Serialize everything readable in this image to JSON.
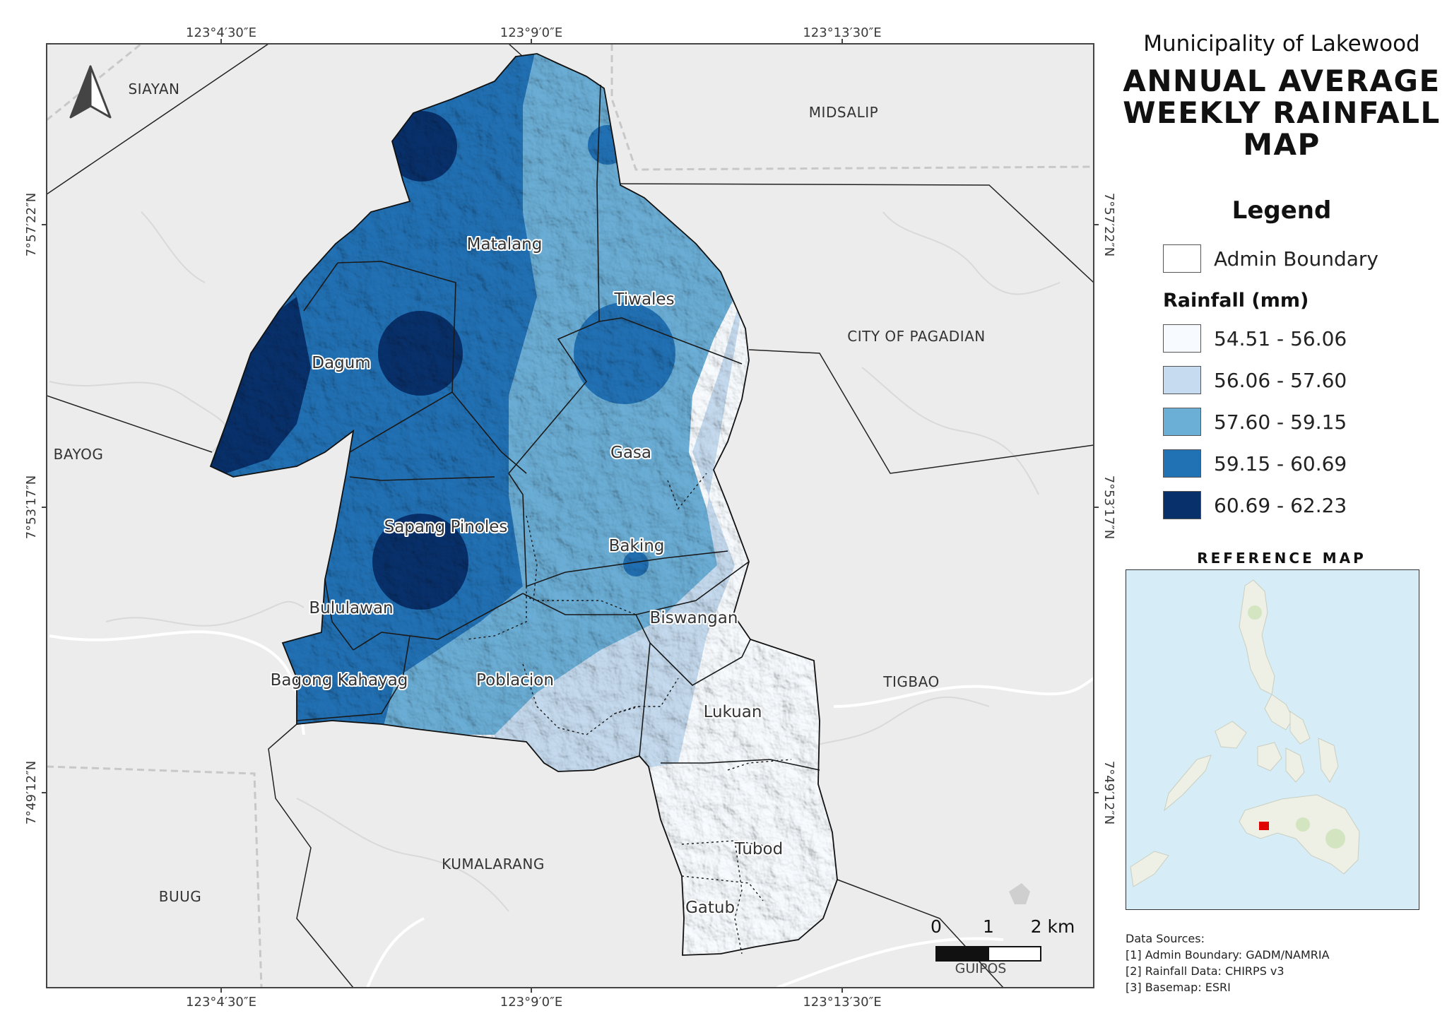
{
  "title": {
    "municipality": "Municipality of Lakewood",
    "line1": "ANNUAL AVERAGE",
    "line2": "WEEKLY RAINFALL",
    "line3": "MAP"
  },
  "grid_labels": {
    "lon": [
      "123°4′30″E",
      "123°9′0″E",
      "123°13′30″E"
    ],
    "lat": [
      "7°57′22″N",
      "7°53′17″N",
      "7°49′12″N"
    ]
  },
  "neighbors": {
    "siayan": "SIAYAN",
    "midsalip": "MIDSALIP",
    "pagadian": "CITY OF PAGADIAN",
    "bayog": "BAYOG",
    "tigbao": "TIGBAO",
    "kumalarang": "KUMALARANG",
    "buug": "BUUG",
    "guipos": "GUIPOS"
  },
  "barangays": {
    "matalang": "Matalang",
    "tiwales": "Tiwales",
    "dagum": "Dagum",
    "gasa": "Gasa",
    "sapang_pinoles": "Sapang Pinoles",
    "baking": "Baking",
    "bululawan": "Bululawan",
    "biswangan": "Biswangan",
    "bagong_kahayag": "Bagong Kahayag",
    "poblacion": "Poblacion",
    "lukuan": "Lukuan",
    "tubod": "Tubod",
    "gatub": "Gatub"
  },
  "legend": {
    "title": "Legend",
    "admin_label": "Admin Boundary",
    "rain_title": "Rainfall (mm)",
    "classes": [
      {
        "label": "54.51 - 56.06",
        "color": "#f7fbff"
      },
      {
        "label": "56.06 - 57.60",
        "color": "#c6dbef"
      },
      {
        "label": "57.60 - 59.15",
        "color": "#6baed6"
      },
      {
        "label": "59.15 - 60.69",
        "color": "#2171b5"
      },
      {
        "label": "60.69 - 62.23",
        "color": "#08306b"
      }
    ]
  },
  "scale_bar": {
    "ticks": [
      "0",
      "1",
      "2 km"
    ]
  },
  "reference_map": {
    "title": "REFERENCE MAP"
  },
  "data_sources": {
    "title": "Data Sources:",
    "items": [
      "[1] Admin Boundary: GADM/NAMRIA",
      "[2] Rainfall Data: CHIRPS v3",
      "[3] Basemap: ESRI"
    ]
  },
  "colors": {
    "basemap": "#ececec",
    "boundary": "#222222",
    "ref_water": "#d6ecf7",
    "ref_marker": "#e00000"
  }
}
